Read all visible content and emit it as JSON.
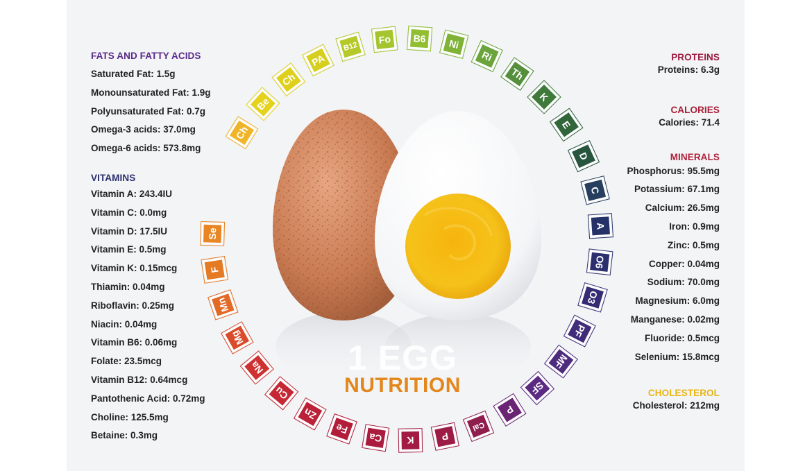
{
  "title": {
    "line1": "1 EGG",
    "line2": "NUTRITION"
  },
  "colors": {
    "fats_heading": "#5a2a8a",
    "vitamins_heading": "#2b2f6b",
    "proteins_heading": "#9b1b3e",
    "calories_heading": "#a71d36",
    "minerals_heading": "#b0203a",
    "cholesterol_heading": "#e8b412",
    "egg_shell": "#c97b52",
    "yolk": "#f4b610",
    "title_accent": "#e3871c"
  },
  "left": {
    "fats": {
      "heading": "FATS AND FATTY ACIDS",
      "items": [
        "Saturated Fat: 1.5g",
        "Monounsaturated Fat: 1.9g",
        "Polyunsaturated Fat: 0.7g",
        "Omega-3 acids: 37.0mg",
        "Omega-6 acids: 573.8mg"
      ]
    },
    "vitamins": {
      "heading": "VITAMINS",
      "items": [
        "Vitamin A: 243.4IU",
        "Vitamin C: 0.0mg",
        "Vitamin D: 17.5IU",
        "Vitamin E: 0.5mg",
        "Vitamin K: 0.15mcg",
        "Thiamin: 0.04mg",
        "Riboflavin: 0.25mg",
        "Niacin: 0.04mg",
        "Vitamin B6: 0.06mg",
        "Folate: 23.5mcg",
        "Vitamin B12: 0.64mcg",
        "Pantothenic Acid: 0.72mg",
        "Choline: 125.5mg",
        "Betaine: 0.3mg"
      ]
    }
  },
  "right": {
    "proteins": {
      "heading": "PROTEINS",
      "items": [
        "Proteins: 6.3g"
      ]
    },
    "calories": {
      "heading": "CALORIES",
      "items": [
        "Calories: 71.4"
      ]
    },
    "minerals": {
      "heading": "MINERALS",
      "items": [
        "Phosphorus: 95.5mg",
        "Potassium: 67.1mg",
        "Calcium: 26.5mg",
        "Iron: 0.9mg",
        "Zinc: 0.5mg",
        "Copper: 0.04mg",
        "Sodium: 70.0mg",
        "Magnesium: 6.0mg",
        "Manganese: 0.02mg",
        "Fluoride: 0.5mcg",
        "Selenium: 15.8mcg"
      ]
    },
    "cholesterol": {
      "heading": "CHOLESTEROL",
      "items": [
        "Cholesterol: 212mg"
      ]
    }
  },
  "wheel_tiles": [
    {
      "label": "Ch",
      "color": "#efb52a"
    },
    {
      "label": "Be",
      "color": "#e4d21c"
    },
    {
      "label": "Ch",
      "color": "#dfd01c"
    },
    {
      "label": "PA",
      "color": "#d6cf1e"
    },
    {
      "label": "B12",
      "color": "#b5c92a"
    },
    {
      "label": "Fo",
      "color": "#a4c52e"
    },
    {
      "label": "B6",
      "color": "#92bf31"
    },
    {
      "label": "Ni",
      "color": "#7fb236"
    },
    {
      "label": "Ri",
      "color": "#6aa43a"
    },
    {
      "label": "Th",
      "color": "#558f3c"
    },
    {
      "label": "K",
      "color": "#3f7a3b"
    },
    {
      "label": "E",
      "color": "#31653a"
    },
    {
      "label": "D",
      "color": "#28553e"
    },
    {
      "label": "C",
      "color": "#263f5e"
    },
    {
      "label": "A",
      "color": "#253268"
    },
    {
      "label": "O6",
      "color": "#2c2e6e"
    },
    {
      "label": "O3",
      "color": "#352d74"
    },
    {
      "label": "PF",
      "color": "#412c79"
    },
    {
      "label": "MF",
      "color": "#4d2b7d"
    },
    {
      "label": "SF",
      "color": "#5b2a82"
    },
    {
      "label": "P",
      "color": "#6a2474"
    },
    {
      "label": "Cal",
      "color": "#8f1e4e"
    },
    {
      "label": "P",
      "color": "#9c1c46"
    },
    {
      "label": "K",
      "color": "#a31b42"
    },
    {
      "label": "Ca",
      "color": "#aa1b3e"
    },
    {
      "label": "Fe",
      "color": "#b21d3a"
    },
    {
      "label": "Zn",
      "color": "#bb2137"
    },
    {
      "label": "Cu",
      "color": "#c52834"
    },
    {
      "label": "Na",
      "color": "#cf3131"
    },
    {
      "label": "Mg",
      "color": "#da4b2b"
    },
    {
      "label": "Mn",
      "color": "#e26a27"
    },
    {
      "label": "F",
      "color": "#e57a24"
    },
    {
      "label": "Se",
      "color": "#e88625"
    }
  ]
}
